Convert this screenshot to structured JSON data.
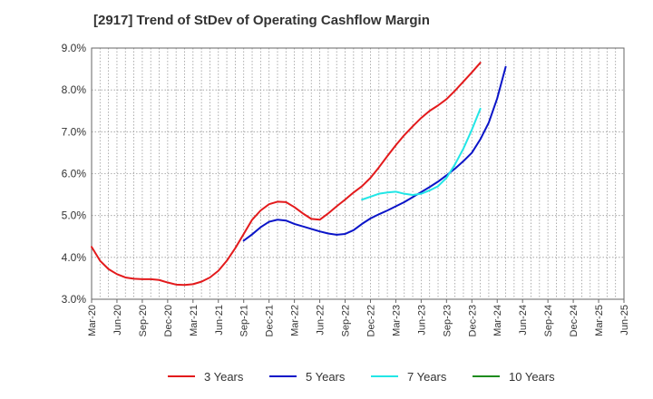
{
  "chart_data": {
    "type": "line",
    "title": "[2917]  Trend of StDev of Operating Cashflow Margin",
    "xlabel": "",
    "ylabel": "",
    "ylim": [
      3.0,
      9.0
    ],
    "yticks": [
      3.0,
      4.0,
      5.0,
      6.0,
      7.0,
      8.0,
      9.0
    ],
    "ytick_labels": [
      "3.0%",
      "4.0%",
      "5.0%",
      "6.0%",
      "7.0%",
      "8.0%",
      "9.0%"
    ],
    "x_labels": [
      "Mar-20",
      "Jun-20",
      "Sep-20",
      "Dec-20",
      "Mar-21",
      "Jun-21",
      "Sep-21",
      "Dec-21",
      "Mar-22",
      "Jun-22",
      "Sep-22",
      "Dec-22",
      "Mar-23",
      "Jun-23",
      "Sep-23",
      "Dec-23",
      "Mar-24",
      "Jun-24",
      "Sep-24",
      "Dec-24",
      "Mar-25",
      "Jun-25"
    ],
    "grid": true,
    "legend_position": "bottom",
    "series": [
      {
        "name": "3 Years",
        "color": "#e31a1c",
        "start_index": 0,
        "values": [
          4.25,
          3.92,
          3.72,
          3.6,
          3.52,
          3.49,
          3.48,
          3.48,
          3.46,
          3.4,
          3.35,
          3.34,
          3.36,
          3.42,
          3.52,
          3.68,
          3.92,
          4.22,
          4.56,
          4.9,
          5.12,
          5.27,
          5.33,
          5.32,
          5.2,
          5.05,
          4.92,
          4.9,
          5.05,
          5.22,
          5.38,
          5.55,
          5.7,
          5.9,
          6.15,
          6.42,
          6.68,
          6.92,
          7.13,
          7.33,
          7.5,
          7.63,
          7.78,
          7.98,
          8.2,
          8.42,
          8.65
        ]
      },
      {
        "name": "5 Years",
        "color": "#0a14c8",
        "start_index": 18,
        "values": [
          4.4,
          4.55,
          4.72,
          4.85,
          4.9,
          4.88,
          4.8,
          4.74,
          4.68,
          4.62,
          4.57,
          4.54,
          4.56,
          4.65,
          4.8,
          4.93,
          5.03,
          5.12,
          5.22,
          5.32,
          5.44,
          5.56,
          5.68,
          5.81,
          5.96,
          6.12,
          6.3,
          6.5,
          6.82,
          7.22,
          7.8,
          8.55
        ]
      },
      {
        "name": "7 Years",
        "color": "#22e6e6",
        "start_index": 32,
        "values": [
          5.38,
          5.45,
          5.52,
          5.55,
          5.57,
          5.52,
          5.49,
          5.52,
          5.6,
          5.7,
          5.9,
          6.22,
          6.6,
          7.05,
          7.55
        ]
      },
      {
        "name": "10 Years",
        "color": "#1e8c1e",
        "start_index": 0,
        "values": []
      }
    ]
  }
}
